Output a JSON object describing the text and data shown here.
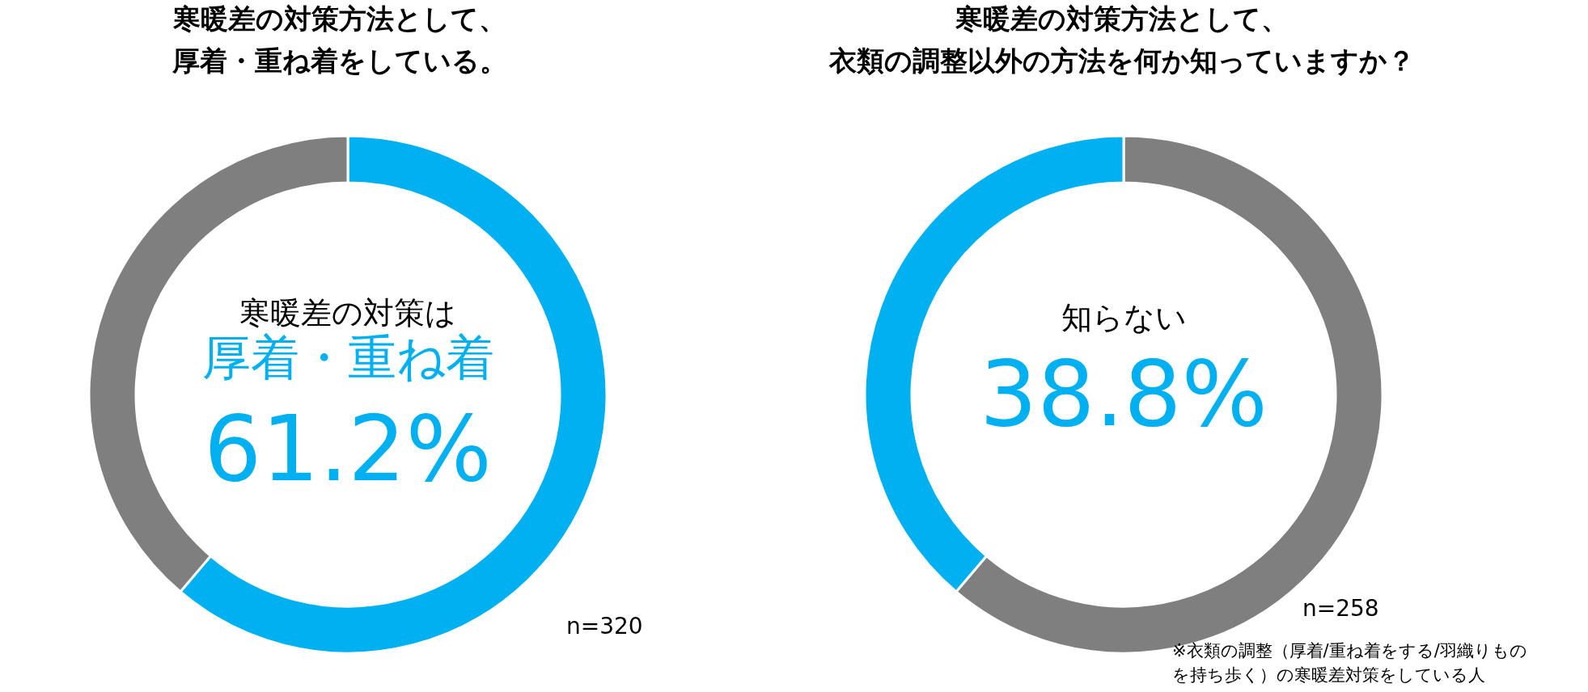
{
  "chart_data": [
    {
      "type": "donut",
      "title": "寒暖差の対策方法として、厚着・重ね着をしている。",
      "categories": [
        "厚着・重ね着",
        null
      ],
      "values": [
        61.2,
        38.8
      ],
      "colors": [
        "#00b0f0",
        "#7f7f7f"
      ],
      "value_labels": [
        "61.2%",
        null
      ],
      "legend": false,
      "annotations": [
        "寒暖差の対策は",
        "n=320"
      ]
    },
    {
      "type": "donut",
      "title": "寒暖差の対策方法として、衣類の調整以外の方法を何か知っていますか？",
      "categories": [
        null,
        "知らない"
      ],
      "values": [
        61.2,
        38.8
      ],
      "colors": [
        "#7f7f7f",
        "#00b0f0"
      ],
      "value_labels": [
        null,
        "38.8%"
      ],
      "legend": false,
      "annotations": [
        "n=258",
        "※衣類の調整（厚着/重ね着をする/羽織りものを持ち歩く）の寒暖差対策をしている人"
      ]
    }
  ]
}
